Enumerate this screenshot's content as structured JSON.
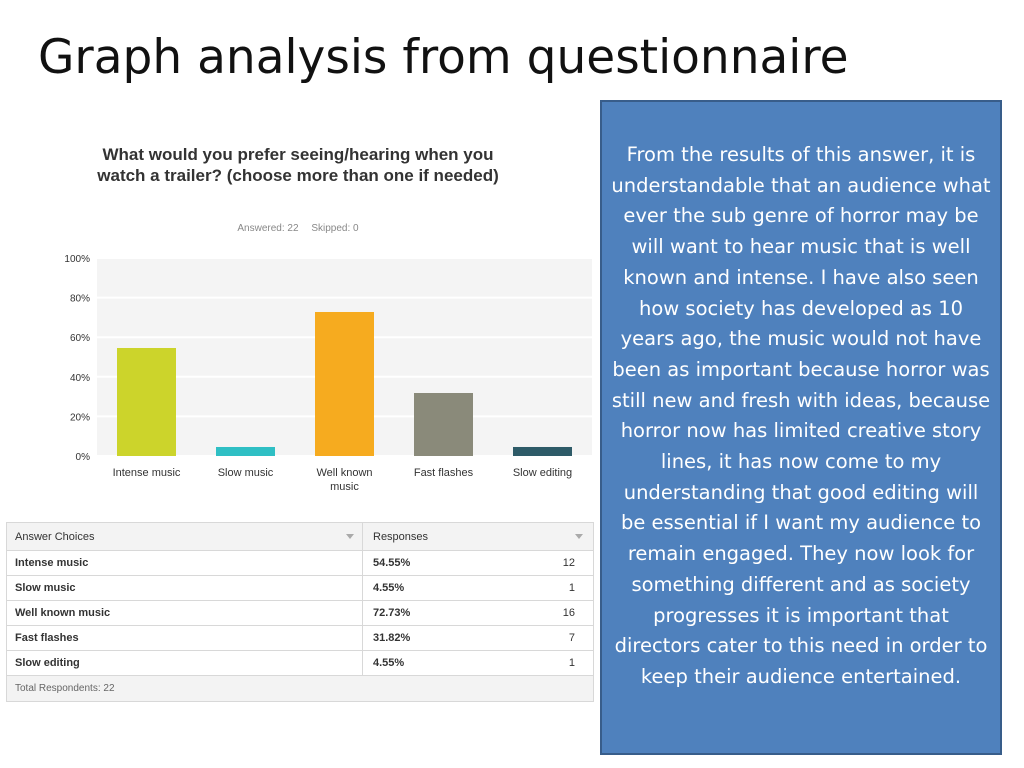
{
  "slide": {
    "title": "Graph analysis from questionnaire",
    "description": "From the results of this answer, it is understandable that an audience what ever the sub genre of horror may be will want to hear music that is well known and intense. I have also seen how society has developed as 10 years ago, the music would not have been as important because horror was still new and fresh with ideas, because horror now has limited creative story lines, it has now come to my understanding that good editing will be essential if I want my audience to remain engaged. They now look for something different and as society progresses it is important that directors cater to this need in order to keep their audience entertained."
  },
  "survey": {
    "answered": "Answered: 22",
    "skipped": "Skipped: 0"
  },
  "chart_data": {
    "type": "bar",
    "title": "What would you prefer seeing/hearing when you watch a trailer? (choose more than one if needed)",
    "categories": [
      "Intense music",
      "Slow music",
      "Well known music",
      "Fast flashes",
      "Slow editing"
    ],
    "values": [
      54.55,
      4.55,
      72.73,
      31.82,
      4.55
    ],
    "colors": [
      "#ccd42b",
      "#2fbfc4",
      "#f6ab1f",
      "#8a8a7a",
      "#2e5b68"
    ],
    "yticks": [
      "0%",
      "20%",
      "40%",
      "60%",
      "80%",
      "100%"
    ],
    "ylim": [
      0,
      100
    ],
    "grid": true
  },
  "table": {
    "headers": [
      "Answer Choices",
      "Responses"
    ],
    "rows": [
      {
        "choice": "Intense music",
        "percent": "54.55%",
        "count": "12"
      },
      {
        "choice": "Slow music",
        "percent": "4.55%",
        "count": "1"
      },
      {
        "choice": "Well known music",
        "percent": "72.73%",
        "count": "16"
      },
      {
        "choice": "Fast flashes",
        "percent": "31.82%",
        "count": "7"
      },
      {
        "choice": "Slow editing",
        "percent": "4.55%",
        "count": "1"
      }
    ],
    "footer": "Total Respondents: 22"
  }
}
